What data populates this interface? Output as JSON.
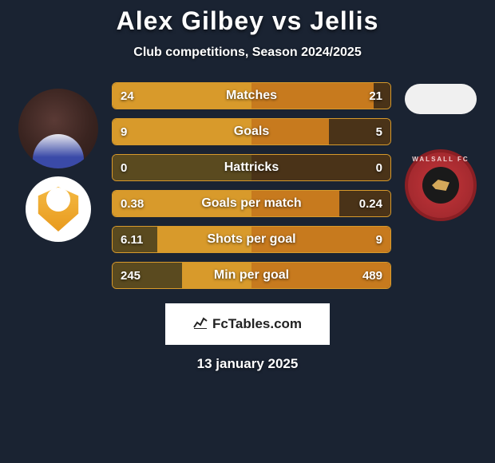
{
  "title": {
    "player_a": "Alex Gilbey",
    "vs": "vs",
    "player_b": "Jellis",
    "color_a": "#ffffff",
    "color_vs": "#ffffff",
    "color_b": "#ffffff",
    "fontsize": 32
  },
  "subtitle": "Club competitions, Season 2024/2025",
  "colors": {
    "background": "#1a2332",
    "track_a": "#5a4a1f",
    "track_b": "#4a3318",
    "fill_a": "#d89a2b",
    "fill_b": "#c77a1e",
    "text": "#ffffff"
  },
  "bar": {
    "height": 34,
    "radius": 6,
    "gap": 11,
    "label_fontsize": 16,
    "value_fontsize": 15
  },
  "stats": [
    {
      "label": "Matches",
      "a": "24",
      "b": "21",
      "pct_a": 100,
      "pct_b": 88
    },
    {
      "label": "Goals",
      "a": "9",
      "b": "5",
      "pct_a": 100,
      "pct_b": 56
    },
    {
      "label": "Hattricks",
      "a": "0",
      "b": "0",
      "pct_a": 0,
      "pct_b": 0
    },
    {
      "label": "Goals per match",
      "a": "0.38",
      "b": "0.24",
      "pct_a": 100,
      "pct_b": 63
    },
    {
      "label": "Shots per goal",
      "a": "6.11",
      "b": "9",
      "pct_a": 68,
      "pct_b": 100
    },
    {
      "label": "Min per goal",
      "a": "245",
      "b": "489",
      "pct_a": 50,
      "pct_b": 100
    }
  ],
  "footer": {
    "brand": "FcTables.com",
    "date": "13 january 2025"
  },
  "clubs": {
    "a_name": "mk-dons-logo",
    "b_name": "walsall-logo",
    "b_text": "WALSALL FC"
  }
}
